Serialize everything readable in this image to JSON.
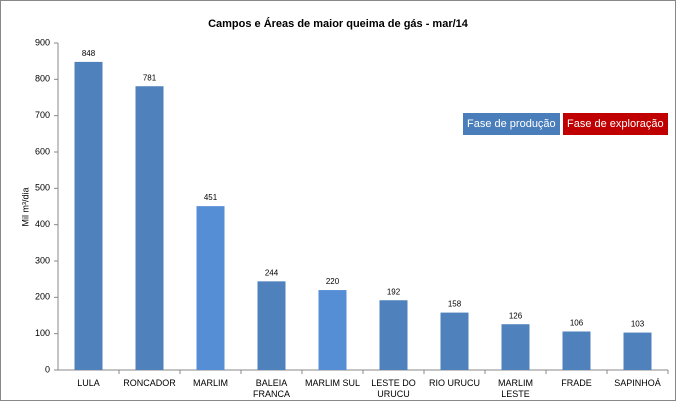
{
  "chart_data": {
    "type": "bar",
    "title": "Campos e Áreas de maior queima de gás - mar/14",
    "y_label": "Mil m³/dia",
    "categories": [
      "LULA",
      "RONCADOR",
      "MARLIM",
      "BALEIA FRANCA",
      "MARLIM SUL",
      "LESTE DO URUCU",
      "RIO URUCU",
      "MARLIM LESTE",
      "FRADE",
      "SAPINHOÁ"
    ],
    "values": [
      848,
      781,
      451,
      244,
      220,
      192,
      158,
      126,
      106,
      103
    ],
    "colors": [
      "#4f81bd",
      "#4f81bd",
      "#558ed5",
      "#4f81bd",
      "#558ed5",
      "#4f81bd",
      "#4f81bd",
      "#4f81bd",
      "#4f81bd",
      "#4f81bd"
    ],
    "ylim": [
      0,
      900
    ],
    "yticks": [
      0,
      100,
      200,
      300,
      400,
      500,
      600,
      700,
      800,
      900
    ],
    "legend": [
      {
        "name": "Fase de produção",
        "color": "#4a7ebb"
      },
      {
        "name": "Fase de exploração",
        "color": "#c00000"
      }
    ]
  }
}
